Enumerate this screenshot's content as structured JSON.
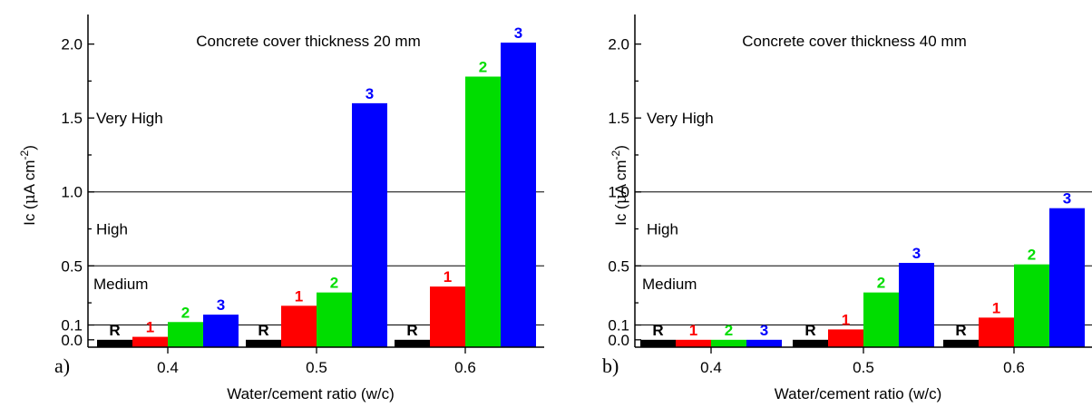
{
  "chart_data": [
    {
      "type": "bar",
      "panel_tag": "a)",
      "title": "Concrete cover thickness 20 mm",
      "xlabel": "Water/cement ratio (w/c)",
      "ylabel_prefix": "Ic (",
      "ylabel_mu": "μ",
      "ylabel_unit": "A cm",
      "ylabel_exp": "-2",
      "ylabel_suffix": ")",
      "categories": [
        "0.4",
        "0.5",
        "0.6"
      ],
      "series": [
        {
          "name": "R",
          "color": "#000000",
          "values": [
            0.0,
            0.0,
            0.0
          ]
        },
        {
          "name": "1",
          "color": "#ff0000",
          "values": [
            0.02,
            0.23,
            0.36
          ]
        },
        {
          "name": "2",
          "color": "#00dd00",
          "values": [
            0.12,
            0.32,
            1.78
          ]
        },
        {
          "name": "3",
          "color": "#0000ff",
          "values": [
            0.17,
            1.6,
            2.01
          ]
        }
      ],
      "yticks": [
        "0.0",
        "0.1",
        "0.5",
        "1.0",
        "1.5",
        "2.0"
      ],
      "ylim": [
        -0.05,
        2.2
      ],
      "reference_lines": [
        0.1,
        0.5,
        1.0
      ],
      "zones": [
        "Very High",
        "High",
        "Medium"
      ],
      "zone_values": [
        1.5,
        0.75,
        0.38
      ]
    },
    {
      "type": "bar",
      "panel_tag": "b)",
      "title": "Concrete cover thickness 40 mm",
      "xlabel": "Water/cement ratio (w/c)",
      "ylabel_prefix": "Ic (",
      "ylabel_mu": "μ",
      "ylabel_unit": "A cm",
      "ylabel_exp": "-2",
      "ylabel_suffix": ")",
      "categories": [
        "0.4",
        "0.5",
        "0.6"
      ],
      "series": [
        {
          "name": "R",
          "color": "#000000",
          "values": [
            0.0,
            0.0,
            0.0
          ]
        },
        {
          "name": "1",
          "color": "#ff0000",
          "values": [
            0.0,
            0.07,
            0.15
          ]
        },
        {
          "name": "2",
          "color": "#00dd00",
          "values": [
            0.0,
            0.32,
            0.51
          ]
        },
        {
          "name": "3",
          "color": "#0000ff",
          "values": [
            0.0,
            0.52,
            0.89
          ]
        }
      ],
      "yticks": [
        "0.0",
        "0.1",
        "0.5",
        "1.0",
        "1.5",
        "2.0"
      ],
      "ylim": [
        -0.05,
        2.2
      ],
      "reference_lines": [
        0.1,
        0.5,
        1.0
      ],
      "zones": [
        "Very High",
        "High",
        "Medium"
      ],
      "zone_values": [
        1.5,
        0.75,
        0.38
      ]
    }
  ]
}
